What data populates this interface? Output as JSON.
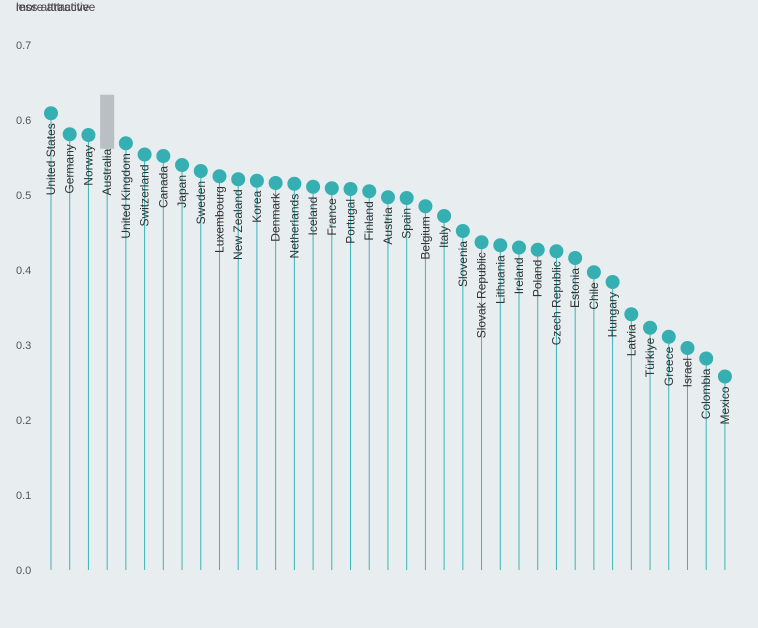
{
  "labels": {
    "top": "more attractive",
    "bottom": "less attractive"
  },
  "colors": {
    "background": "#e8edf0",
    "stem": "#3ab5b6",
    "dot": "#35afb1",
    "highlight": "#b9bfc2"
  },
  "chart_data": {
    "type": "lollipop",
    "ylim": [
      0,
      0.7
    ],
    "yticks": [
      "0.0",
      "0.1",
      "0.2",
      "0.3",
      "0.4",
      "0.5",
      "0.6",
      "0.7"
    ],
    "ytick_values": [
      0,
      0.1,
      0.2,
      0.3,
      0.4,
      0.5,
      0.6,
      0.7
    ],
    "grid": false,
    "highlighted": "Australia",
    "categories": [
      "United States",
      "Germany",
      "Norway",
      "Australia",
      "United Kingdom",
      "Switzerland",
      "Canada",
      "Japan",
      "Sweden",
      "Luxembourg",
      "New Zealand",
      "Korea",
      "Denmark",
      "Netherlands",
      "Iceland",
      "France",
      "Portugal",
      "Finland",
      "Austria",
      "Spain",
      "Belgium",
      "Italy",
      "Slovenia",
      "Slovak Republic",
      "Lithuania",
      "Ireland",
      "Poland",
      "Czech Republic",
      "Estonia",
      "Chile",
      "Hungary",
      "Latvia",
      "Türkiye",
      "Greece",
      "Israel",
      "Colombia",
      "Mexico"
    ],
    "values": [
      0.609,
      0.581,
      0.58,
      0.575,
      0.569,
      0.554,
      0.552,
      0.54,
      0.532,
      0.525,
      0.521,
      0.519,
      0.516,
      0.515,
      0.511,
      0.509,
      0.508,
      0.505,
      0.497,
      0.496,
      0.485,
      0.472,
      0.452,
      0.437,
      0.433,
      0.43,
      0.427,
      0.425,
      0.416,
      0.397,
      0.384,
      0.341,
      0.323,
      0.311,
      0.296,
      0.282,
      0.258
    ]
  }
}
